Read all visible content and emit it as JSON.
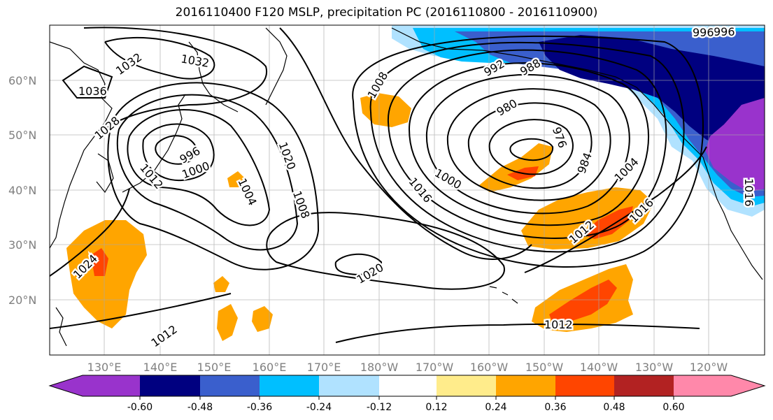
{
  "title": "2016110400 F120 MSLP, precipitation PC (2016110800 - 2016110900)",
  "map": {
    "lat_labels": [
      "60°N",
      "50°N",
      "40°N",
      "30°N",
      "20°N"
    ],
    "lon_labels": [
      "130°E",
      "140°E",
      "150°E",
      "160°E",
      "170°E",
      "180°W",
      "170°W",
      "160°W",
      "150°W",
      "140°W",
      "130°W",
      "120°W"
    ],
    "isobar_labels": [
      "1032",
      "1032",
      "1036",
      "1028",
      "1012",
      "996",
      "1000",
      "1004",
      "1020",
      "1008",
      "1016",
      "1020",
      "1008",
      "1000",
      "992",
      "988",
      "980",
      "976",
      "984",
      "1004",
      "1016",
      "1012",
      "1024",
      "1012",
      "1012",
      "996",
      "1016",
      "996"
    ]
  },
  "colorbar": {
    "colors": [
      "#9933cc",
      "#000080",
      "#3a5fcd",
      "#00bfff",
      "#b0e2ff",
      "#ffffff",
      "#ffec8b",
      "#ffa500",
      "#ff4500",
      "#b22222",
      "#ff88aa"
    ],
    "tick_labels": [
      "-0.60",
      "-0.48",
      "-0.36",
      "-0.24",
      "-0.12",
      "0.12",
      "0.24",
      "0.36",
      "0.48",
      "0.60"
    ]
  }
}
